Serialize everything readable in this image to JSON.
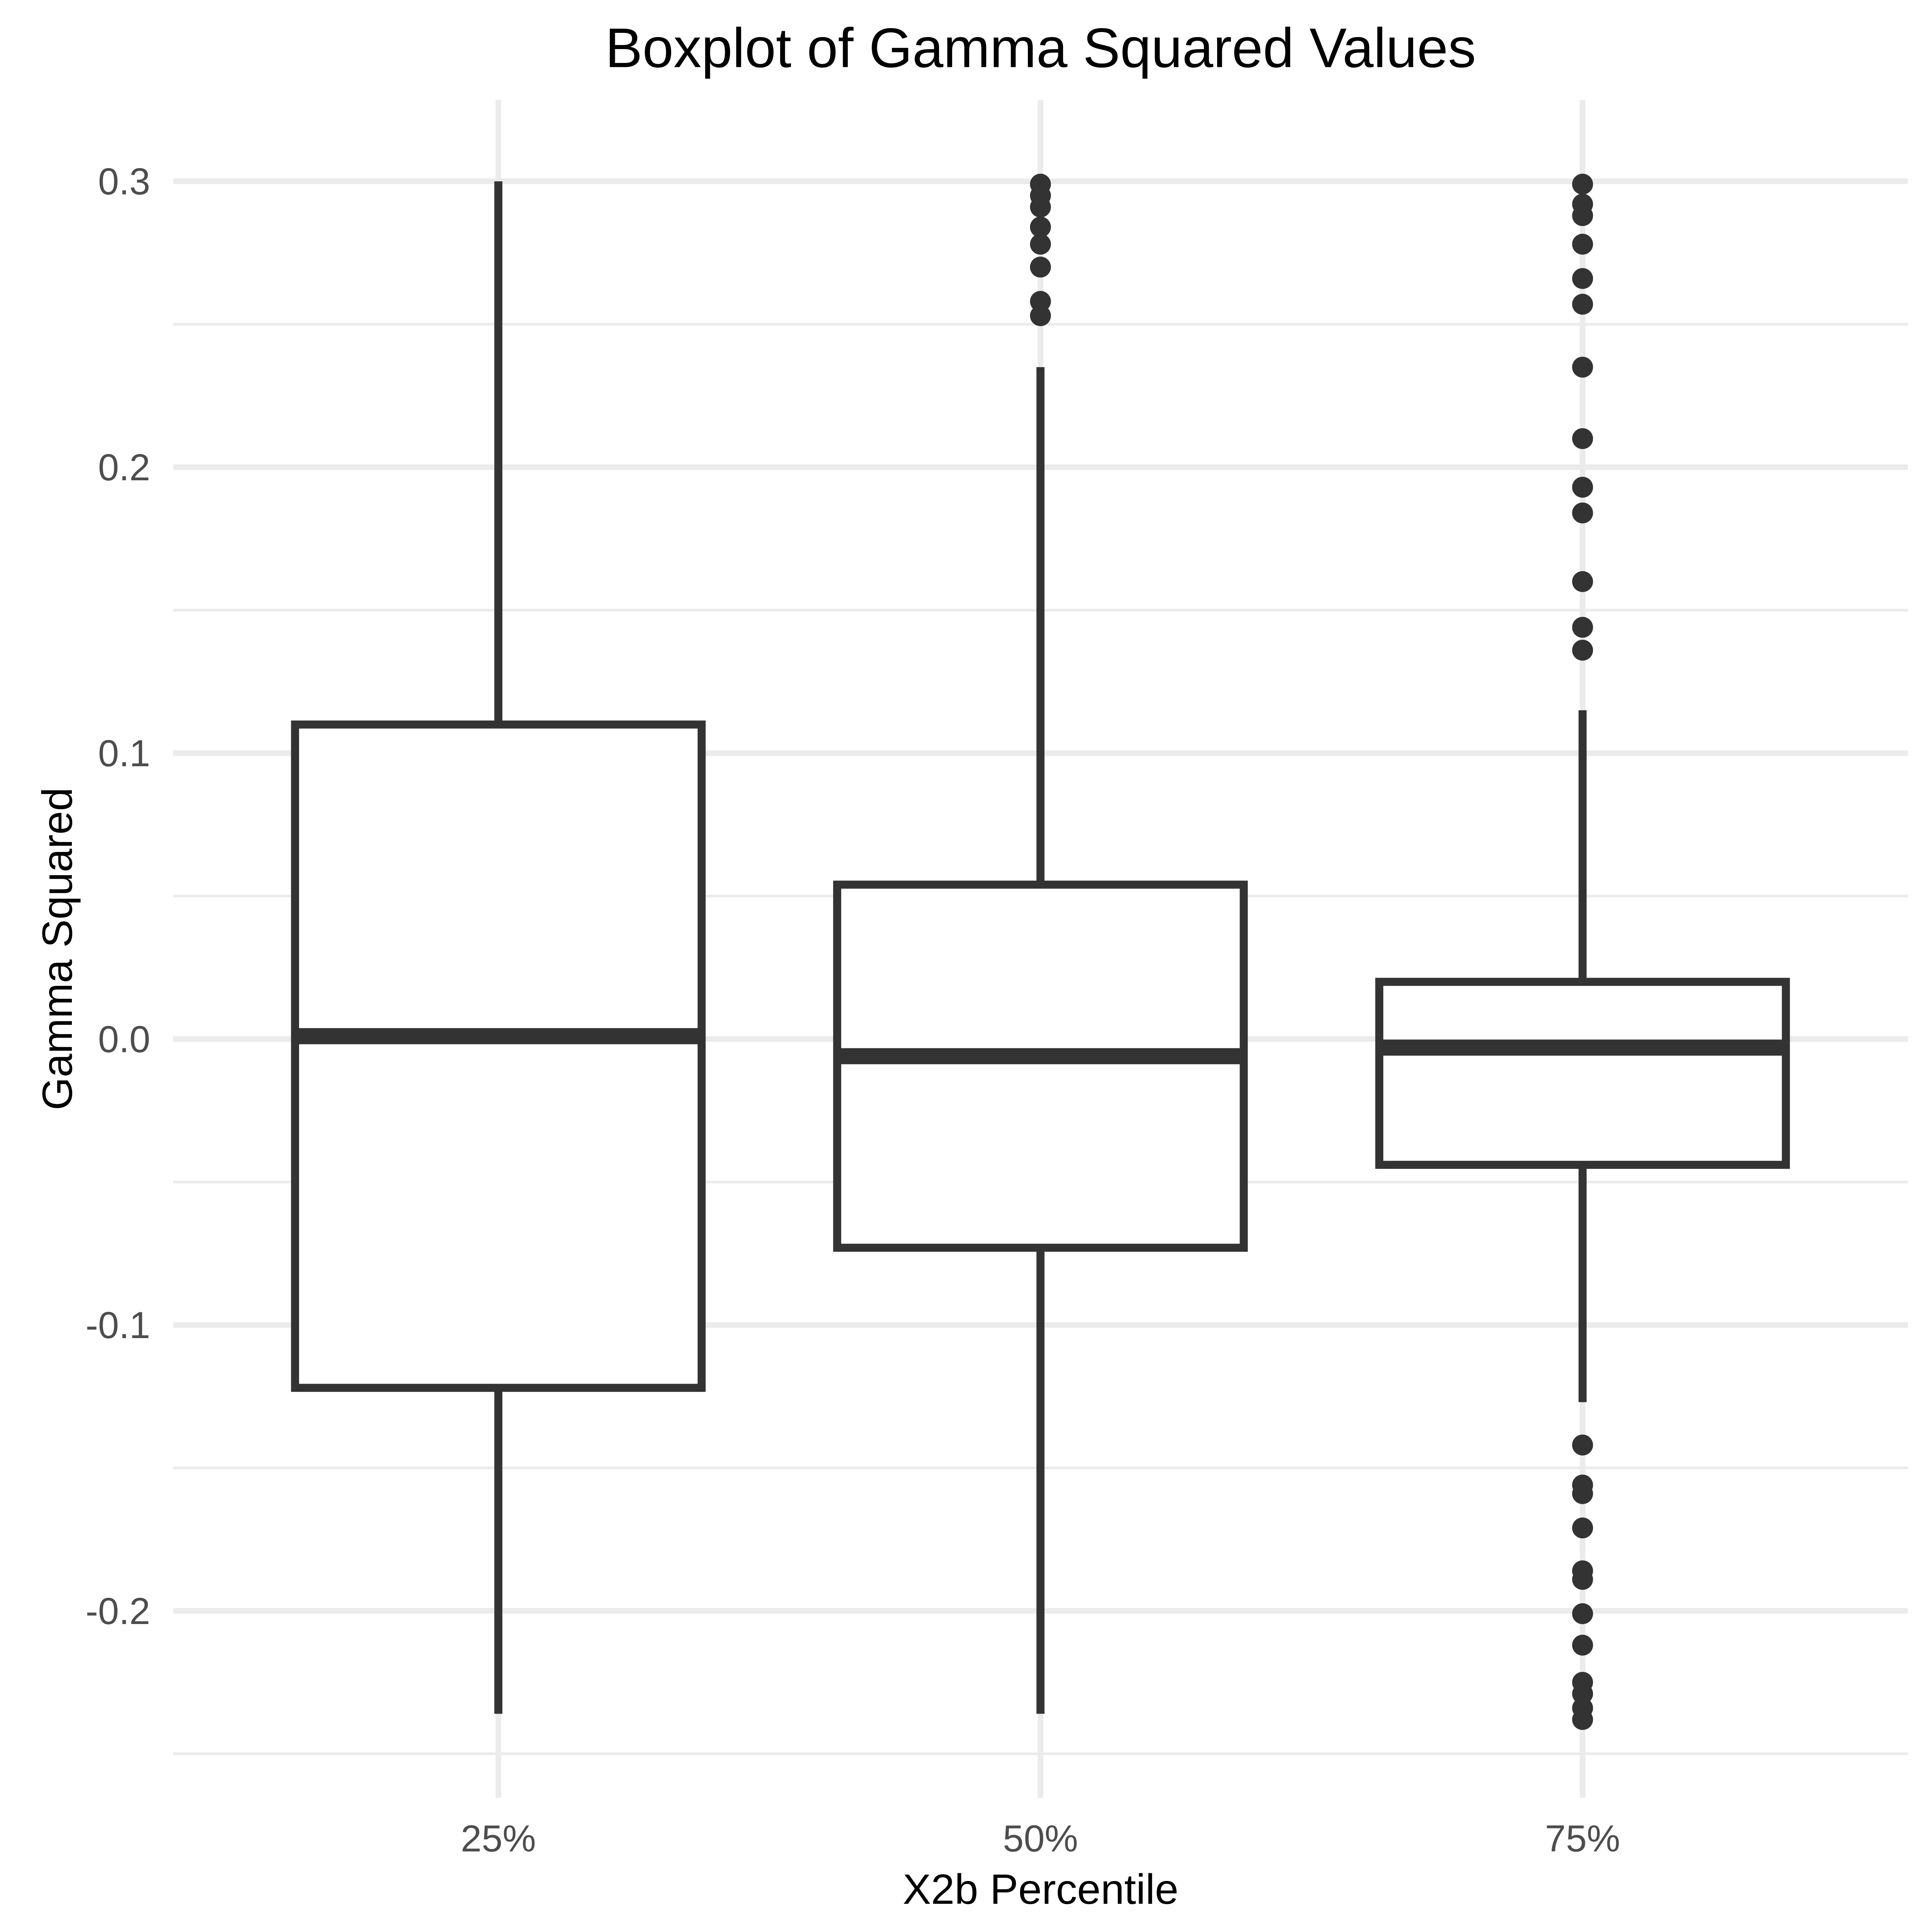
{
  "chart_data": {
    "type": "boxplot",
    "title": "Boxplot of Gamma Squared Values",
    "xlabel": "X2b Percentile",
    "ylabel": "Gamma Squared",
    "categories": [
      "25%",
      "50%",
      "75%"
    ],
    "y_major_ticks": [
      {
        "value": 0.3,
        "label": "0.3"
      },
      {
        "value": 0.2,
        "label": "0.2"
      },
      {
        "value": 0.1,
        "label": "0.1"
      },
      {
        "value": 0.0,
        "label": "0.0"
      },
      {
        "value": -0.1,
        "label": "-0.1"
      },
      {
        "value": -0.2,
        "label": "-0.2"
      }
    ],
    "y_minor_ticks": [
      0.25,
      0.15,
      0.05,
      -0.05,
      -0.15,
      -0.25
    ],
    "ylim": [
      -0.2654,
      0.3285
    ],
    "grid": "horizontal major+minor and vertical category gridlines, light gray, no axis lines, no tick marks",
    "legend_position": "none",
    "series": [
      {
        "category": "25%",
        "whisker_low": -0.236,
        "q1": -0.122,
        "median": 0.001,
        "q3": 0.11,
        "whisker_high": 0.3,
        "outliers": []
      },
      {
        "category": "50%",
        "whisker_low": -0.236,
        "q1": -0.073,
        "median": -0.006,
        "q3": 0.054,
        "whisker_high": 0.235,
        "outliers": [
          0.299,
          0.295,
          0.291,
          0.284,
          0.278,
          0.27,
          0.258,
          0.253
        ]
      },
      {
        "category": "75%",
        "whisker_low": -0.127,
        "q1": -0.044,
        "median": -0.003,
        "q3": 0.02,
        "whisker_high": 0.115,
        "outliers": [
          0.299,
          0.292,
          0.288,
          0.278,
          0.266,
          0.257,
          0.235,
          0.21,
          0.193,
          0.184,
          0.16,
          0.144,
          0.136,
          -0.142,
          -0.156,
          -0.159,
          -0.171,
          -0.186,
          -0.189,
          -0.201,
          -0.212,
          -0.225,
          -0.229,
          -0.234,
          -0.238
        ]
      }
    ],
    "colors": {
      "box_outline": "#333333",
      "box_fill": "#ffffff",
      "median": "#333333",
      "whisker": "#333333",
      "outlier": "#333333",
      "grid": "#ebebeb",
      "tick_label": "#4d4d4d",
      "title": "#000000",
      "axis_title": "#000000",
      "background": "#ffffff"
    }
  }
}
